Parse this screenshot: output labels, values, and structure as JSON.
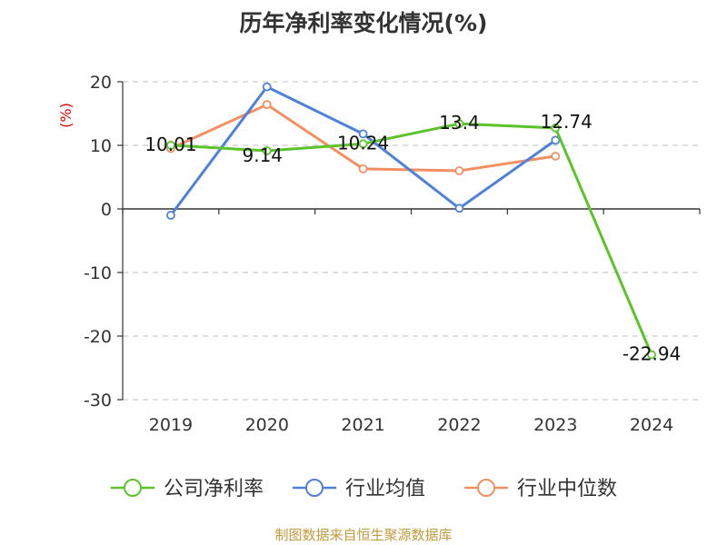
{
  "chart_data": {
    "type": "line",
    "title": "历年净利率变化情况(%)",
    "ylabel": "(%)",
    "xlabel": "",
    "categories": [
      "2019",
      "2020",
      "2021",
      "2022",
      "2023",
      "2024"
    ],
    "ylim": [
      -30,
      20
    ],
    "yticks": [
      20,
      10,
      0,
      -10,
      -20,
      -30
    ],
    "grid": true,
    "legend_position": "bottom",
    "series": [
      {
        "name": "公司净利率",
        "color": "#5cc42b",
        "values": [
          10.01,
          9.14,
          10.24,
          13.4,
          12.74,
          -22.94
        ],
        "labels": [
          "10.01",
          "9.14",
          "10.24",
          "13.4",
          "12.74",
          "-22.94"
        ]
      },
      {
        "name": "行业均值",
        "color": "#4f81d9",
        "values": [
          -1.0,
          19.2,
          11.8,
          0.1,
          10.8,
          null
        ]
      },
      {
        "name": "行业中位数",
        "color": "#f39062",
        "values": [
          9.5,
          16.4,
          6.3,
          6.0,
          8.3,
          null
        ]
      }
    ]
  },
  "footer": {
    "source": "制图数据来自恒生聚源数据库"
  }
}
